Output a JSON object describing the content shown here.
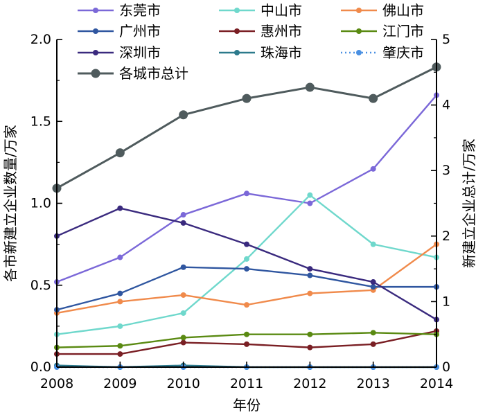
{
  "chart_data": {
    "type": "line",
    "x": [
      2008,
      2009,
      2010,
      2011,
      2012,
      2013,
      2014
    ],
    "xlabel": "年份",
    "ylabel_left": "各市新建立企业数量/万家",
    "ylabel_right": "新建立企业总计/万家",
    "ylim_left": [
      0,
      2.0
    ],
    "ylim_right": [
      0,
      5
    ],
    "yticks_left": [
      "0.0",
      "0.5",
      "1.0",
      "1.5",
      "2.0"
    ],
    "yticks_right": [
      "0",
      "1",
      "2",
      "3",
      "4",
      "5"
    ],
    "grid": false,
    "legend_position": "top-left",
    "series": [
      {
        "name": "东莞市",
        "axis": "left",
        "color": "#7b68d8",
        "style": "solid",
        "values": [
          0.52,
          0.67,
          0.93,
          1.06,
          1.0,
          1.21,
          1.66
        ]
      },
      {
        "name": "中山市",
        "axis": "left",
        "color": "#6fd8cc",
        "style": "solid",
        "values": [
          0.2,
          0.25,
          0.33,
          0.66,
          1.05,
          0.75,
          0.67
        ]
      },
      {
        "name": "佛山市",
        "axis": "left",
        "color": "#f08a4b",
        "style": "solid",
        "values": [
          0.33,
          0.4,
          0.44,
          0.38,
          0.45,
          0.47,
          0.75
        ]
      },
      {
        "name": "广州市",
        "axis": "left",
        "color": "#2f56a0",
        "style": "solid",
        "values": [
          0.35,
          0.45,
          0.61,
          0.6,
          0.56,
          0.49,
          0.49
        ]
      },
      {
        "name": "惠州市",
        "axis": "left",
        "color": "#7a1f24",
        "style": "solid",
        "values": [
          0.08,
          0.08,
          0.15,
          0.14,
          0.12,
          0.14,
          0.22
        ]
      },
      {
        "name": "江门市",
        "axis": "left",
        "color": "#5a8a12",
        "style": "solid",
        "values": [
          0.12,
          0.13,
          0.18,
          0.2,
          0.2,
          0.21,
          0.2
        ]
      },
      {
        "name": "深圳市",
        "axis": "left",
        "color": "#3a2a7e",
        "style": "solid",
        "values": [
          0.8,
          0.97,
          0.88,
          0.75,
          0.6,
          0.52,
          0.29
        ]
      },
      {
        "name": "珠海市",
        "axis": "left",
        "color": "#2c7a8c",
        "style": "solid",
        "values": [
          0.01,
          0.0,
          0.01,
          0.0,
          0.0,
          0.0,
          0.0
        ]
      },
      {
        "name": "肇庆市",
        "axis": "left",
        "color": "#4a90e2",
        "style": "dotted",
        "values": [
          0.0,
          0.0,
          0.0,
          0.0,
          0.0,
          0.0,
          0.0
        ]
      },
      {
        "name": "各城市总计",
        "axis": "right",
        "color": "#4f5b5d",
        "style": "solid",
        "marker": "large",
        "values": [
          2.73,
          3.27,
          3.85,
          4.1,
          4.27,
          4.1,
          4.58
        ]
      }
    ]
  }
}
